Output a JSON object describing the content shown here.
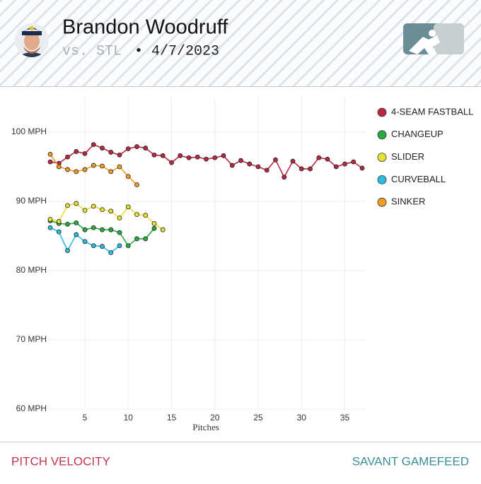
{
  "header": {
    "name": "Brandon Woodruff",
    "opponent": "vs. STL",
    "date": "• 4/7/2023"
  },
  "chart_data": {
    "type": "line",
    "x_label": "Pitches",
    "x": [
      1,
      2,
      3,
      4,
      5,
      6,
      7,
      8,
      9,
      10,
      11,
      12,
      13,
      14,
      15,
      16,
      17,
      18,
      19,
      20,
      21,
      22,
      23,
      24,
      25,
      26,
      27,
      28,
      29,
      30,
      31,
      32,
      33,
      34,
      35,
      36,
      37
    ],
    "xlim": [
      1,
      37
    ],
    "xticks": [
      5,
      10,
      15,
      20,
      25,
      30,
      35
    ],
    "ylim": [
      60,
      105
    ],
    "yticks": [
      {
        "value": 60,
        "label": "60 MPH"
      },
      {
        "value": 70,
        "label": "70 MPH"
      },
      {
        "value": 80,
        "label": "80 MPH"
      },
      {
        "value": 90,
        "label": "90 MPH"
      },
      {
        "value": 100,
        "label": "100 MPH"
      }
    ],
    "grid": true,
    "legend": "right",
    "series": [
      {
        "name": "4-SEAM FASTBALL",
        "color": "#b8283e",
        "values": [
          95.7,
          95.5,
          96.4,
          97.2,
          96.9,
          98.2,
          97.7,
          97.1,
          96.7,
          97.6,
          97.9,
          97.7,
          96.7,
          96.6,
          95.6,
          96.6,
          96.3,
          96.4,
          96.1,
          96.3,
          96.6,
          95.2,
          95.9,
          95.4,
          95.0,
          94.5,
          96.0,
          93.5,
          95.8,
          94.7,
          94.7,
          96.3,
          96.1,
          95.0,
          95.4,
          95.7,
          94.8
        ]
      },
      {
        "name": "CHANGEUP",
        "color": "#27ae3e",
        "values": [
          87.2,
          86.8,
          86.7,
          86.9,
          85.9,
          86.2,
          85.9,
          85.9,
          85.5,
          83.6,
          84.6,
          84.6,
          86.1,
          null,
          null,
          null,
          null,
          null,
          null,
          null,
          null,
          null,
          null,
          null,
          null,
          null,
          null,
          null,
          null,
          null,
          null,
          null,
          null,
          null,
          null,
          null,
          null
        ]
      },
      {
        "name": "SLIDER",
        "color": "#e6e132",
        "values": [
          87.4,
          87.1,
          89.4,
          89.7,
          88.7,
          89.3,
          88.8,
          88.6,
          87.6,
          89.2,
          88.1,
          88.0,
          86.8,
          85.9,
          null,
          null,
          null,
          null,
          null,
          null,
          null,
          null,
          null,
          null,
          null,
          null,
          null,
          null,
          null,
          null,
          null,
          null,
          null,
          null,
          null,
          null,
          null
        ]
      },
      {
        "name": "CURVEBALL",
        "color": "#2bbde0",
        "values": [
          86.2,
          85.6,
          82.9,
          85.2,
          84.2,
          83.6,
          83.5,
          82.6,
          83.6,
          null,
          null,
          null,
          null,
          null,
          null,
          null,
          null,
          null,
          null,
          null,
          null,
          null,
          null,
          null,
          null,
          null,
          null,
          null,
          null,
          null,
          null,
          null,
          null,
          null,
          null,
          null,
          null
        ]
      },
      {
        "name": "SINKER",
        "color": "#f29c1f",
        "values": [
          96.8,
          95.0,
          94.6,
          94.3,
          94.6,
          95.2,
          95.1,
          94.3,
          95.0,
          93.6,
          92.4,
          null,
          null,
          null,
          null,
          null,
          null,
          null,
          null,
          null,
          null,
          null,
          null,
          null,
          null,
          null,
          null,
          null,
          null,
          null,
          null,
          null,
          null,
          null,
          null,
          null,
          null
        ]
      }
    ]
  },
  "footer": {
    "left": "PITCH VELOCITY",
    "right": "SAVANT GAMEFEED"
  }
}
